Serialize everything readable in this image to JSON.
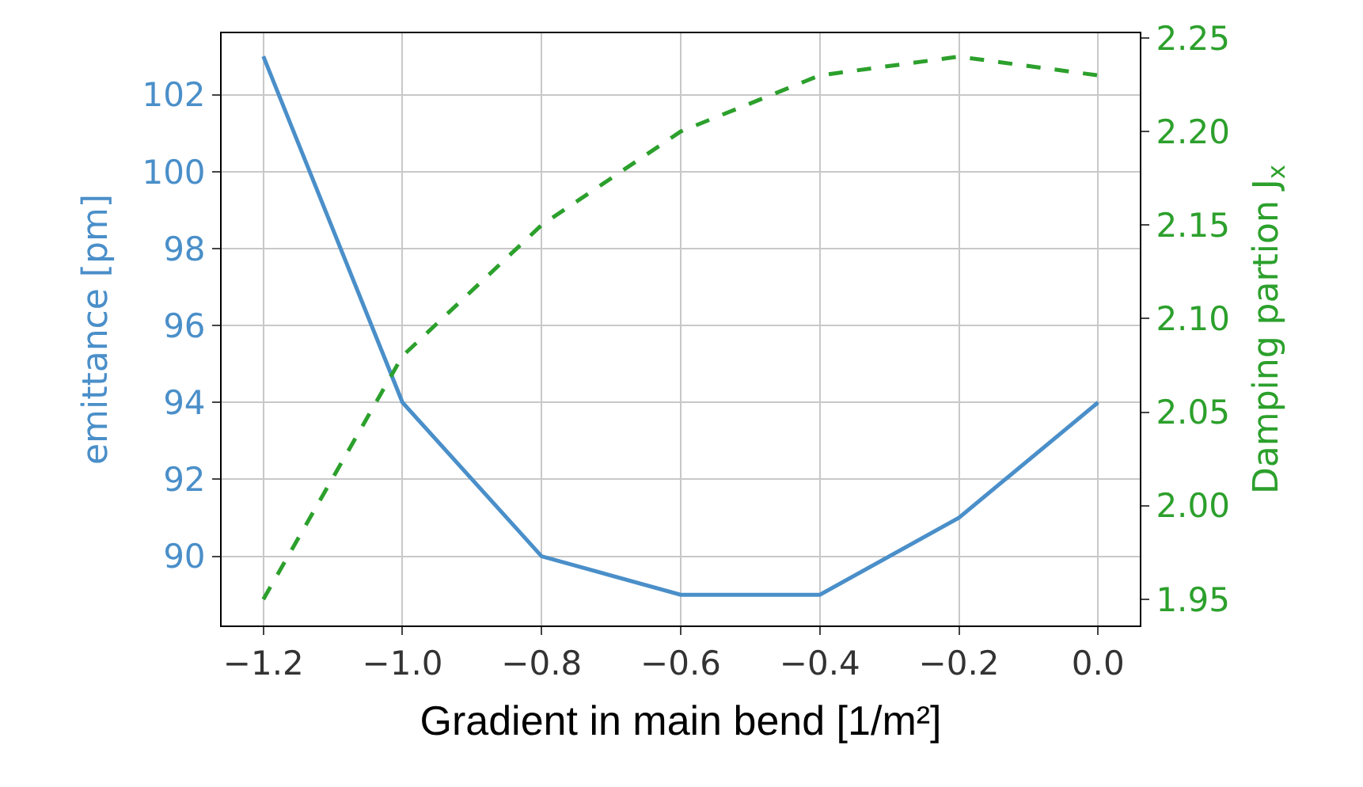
{
  "chart_data": {
    "type": "line",
    "xlabel": "Gradient in main bend [1/m²]",
    "ylabel": "emittance [pm]",
    "y2label": "Damping partion J$_{x}$",
    "x": [
      -1.2,
      -1.0,
      -0.8,
      -0.6,
      -0.4,
      -0.2,
      0.0
    ],
    "series": [
      {
        "color": "#4a8fc9",
        "values": [
          103,
          94,
          90,
          89,
          89,
          91,
          94
        ],
        "line_style": "solid"
      },
      {
        "color": "#2ca02c",
        "values": [
          1.95,
          2.08,
          2.15,
          2.2,
          2.23,
          2.24,
          2.23
        ],
        "axis": "y2",
        "line_style": "dashed"
      }
    ],
    "xlim": [
      -1.26,
      0.06
    ],
    "xticks": [
      {
        "value": -1.2,
        "label": "−1.2"
      },
      {
        "value": -1.0,
        "label": "−1.0"
      },
      {
        "value": -0.8,
        "label": "−0.8"
      },
      {
        "value": -0.6,
        "label": "−0.6"
      },
      {
        "value": -0.4,
        "label": "−0.4"
      },
      {
        "value": -0.2,
        "label": "−0.2"
      },
      {
        "value": 0.0,
        "label": "0.0"
      }
    ],
    "ylim": [
      88.2,
      103.6
    ],
    "yticks": [
      90,
      92,
      94,
      96,
      98,
      100,
      102
    ],
    "y2lim": [
      1.936,
      2.2525
    ],
    "y2ticks": [
      {
        "value": 1.95,
        "label": "1.95"
      },
      {
        "value": 2.0,
        "label": "2.00"
      },
      {
        "value": 2.05,
        "label": "2.05"
      },
      {
        "value": 2.1,
        "label": "2.10"
      },
      {
        "value": 2.15,
        "label": "2.15"
      },
      {
        "value": 2.2,
        "label": "2.20"
      },
      {
        "value": 2.25,
        "label": "2.25"
      }
    ],
    "grid": true,
    "marker": "none"
  }
}
